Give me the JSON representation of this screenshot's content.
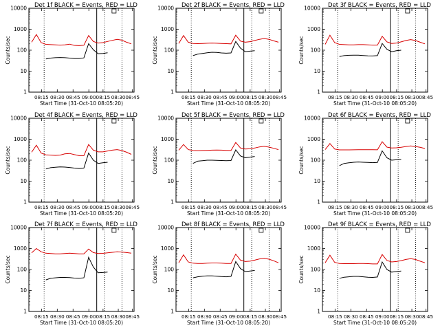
{
  "chart_data": [
    {
      "type": "line",
      "title": "Det 1f BLACK = Events, RED = LLD",
      "xlabel": "Start Time (31-Oct-10 08:05:20)",
      "ylabel": "Counts/sec",
      "x_ticks": [
        "08:15",
        "08:30",
        "08:45",
        "09:00",
        "08:15",
        "08:30",
        "08:45"
      ],
      "y_ticks": [
        "1",
        "10",
        "100",
        "1000",
        "10000"
      ],
      "yscale": "log",
      "ylim": [
        1,
        10000
      ],
      "series": [
        {
          "color": "#d80000",
          "values": [
            240,
            560,
            230,
            190,
            185,
            180,
            175,
            180,
            195,
            170,
            165,
            172,
            500,
            260,
            220,
            230,
            260,
            295,
            330,
            300,
            240,
            200
          ]
        },
        {
          "color": "#000000",
          "values": [
            null,
            null,
            null,
            38,
            42,
            44,
            45,
            44,
            42,
            40,
            40,
            43,
            205,
            105,
            68,
            70,
            75,
            null,
            null,
            null,
            null,
            null
          ]
        }
      ]
    },
    {
      "type": "line",
      "title": "Det 2f BLACK = Events, RED = LLD",
      "xlabel": "Start Time (31-Oct-10 08:05:20)",
      "ylabel": "Counts/sec",
      "x_ticks": [
        "08:15",
        "08:30",
        "08:45",
        "09:00",
        "08:15",
        "08:30",
        "08:45"
      ],
      "y_ticks": [
        "1",
        "10",
        "100",
        "1000",
        "10000"
      ],
      "yscale": "log",
      "ylim": [
        1,
        10000
      ],
      "series": [
        {
          "color": "#d80000",
          "values": [
            210,
            500,
            240,
            210,
            205,
            210,
            215,
            220,
            215,
            210,
            205,
            200,
            520,
            270,
            240,
            255,
            290,
            330,
            360,
            330,
            280,
            240
          ]
        },
        {
          "color": "#000000",
          "values": [
            null,
            null,
            null,
            55,
            65,
            70,
            75,
            80,
            78,
            74,
            72,
            74,
            260,
            125,
            85,
            90,
            95,
            null,
            null,
            null,
            null,
            null
          ]
        }
      ]
    },
    {
      "type": "line",
      "title": "Det 3f BLACK = Events, RED = LLD",
      "xlabel": "Start Time (31-Oct-10 08:05:20)",
      "ylabel": "Counts/sec",
      "x_ticks": [
        "08:15",
        "08:30",
        "08:45",
        "09:00",
        "08:15",
        "08:30",
        "08:45"
      ],
      "y_ticks": [
        "1",
        "10",
        "100",
        "1000",
        "10000"
      ],
      "yscale": "log",
      "ylim": [
        1,
        10000
      ],
      "series": [
        {
          "color": "#d80000",
          "values": [
            190,
            520,
            230,
            190,
            185,
            180,
            180,
            185,
            185,
            180,
            175,
            175,
            460,
            250,
            210,
            220,
            250,
            290,
            320,
            290,
            240,
            200
          ]
        },
        {
          "color": "#000000",
          "values": [
            null,
            null,
            null,
            50,
            55,
            57,
            58,
            58,
            56,
            54,
            53,
            55,
            210,
            110,
            85,
            95,
            100,
            null,
            null,
            null,
            null,
            null
          ]
        }
      ]
    },
    {
      "type": "line",
      "title": "Det 4f BLACK = Events, RED = LLD",
      "xlabel": "Start Time (31-Oct-10 08:05:20)",
      "ylabel": "Counts/sec",
      "x_ticks": [
        "08:15",
        "08:30",
        "08:45",
        "09:00",
        "08:15",
        "08:30",
        "08:45"
      ],
      "y_ticks": [
        "1",
        "10",
        "100",
        "1000",
        "10000"
      ],
      "yscale": "log",
      "ylim": [
        1,
        10000
      ],
      "series": [
        {
          "color": "#d80000",
          "values": [
            240,
            520,
            220,
            180,
            175,
            170,
            175,
            200,
            210,
            185,
            165,
            165,
            560,
            300,
            250,
            250,
            275,
            300,
            320,
            290,
            240,
            190
          ]
        },
        {
          "color": "#000000",
          "values": [
            null,
            null,
            null,
            38,
            44,
            46,
            48,
            47,
            45,
            42,
            40,
            42,
            220,
            100,
            70,
            75,
            80,
            null,
            null,
            null,
            null,
            null
          ]
        }
      ]
    },
    {
      "type": "line",
      "title": "Det 5f BLACK = Events, RED = LLD",
      "xlabel": "Start Time (31-Oct-10 08:05:20)",
      "ylabel": "Counts/sec",
      "x_ticks": [
        "08:15",
        "08:30",
        "08:45",
        "09:00",
        "08:15",
        "08:30",
        "08:45"
      ],
      "y_ticks": [
        "1",
        "10",
        "100",
        "1000",
        "10000"
      ],
      "yscale": "log",
      "ylim": [
        1,
        10000
      ],
      "series": [
        {
          "color": "#d80000",
          "values": [
            300,
            560,
            320,
            290,
            285,
            290,
            295,
            300,
            305,
            300,
            295,
            290,
            700,
            380,
            340,
            350,
            380,
            430,
            460,
            420,
            370,
            320
          ]
        },
        {
          "color": "#000000",
          "values": [
            null,
            null,
            null,
            70,
            90,
            95,
            100,
            100,
            98,
            96,
            94,
            96,
            310,
            160,
            130,
            140,
            150,
            null,
            null,
            null,
            null,
            null
          ]
        }
      ]
    },
    {
      "type": "line",
      "title": "Det 6f BLACK = Events, RED = LLD",
      "xlabel": "Start Time (31-Oct-10 08:05:20)",
      "ylabel": "Counts/sec",
      "x_ticks": [
        "08:15",
        "08:30",
        "08:45",
        "09:00",
        "08:15",
        "08:30",
        "08:45"
      ],
      "y_ticks": [
        "1",
        "10",
        "100",
        "1000",
        "10000"
      ],
      "yscale": "log",
      "ylim": [
        1,
        10000
      ],
      "series": [
        {
          "color": "#d80000",
          "values": [
            320,
            620,
            340,
            310,
            310,
            310,
            312,
            315,
            318,
            316,
            314,
            312,
            760,
            420,
            380,
            390,
            410,
            450,
            480,
            450,
            410,
            360
          ]
        },
        {
          "color": "#000000",
          "values": [
            null,
            null,
            null,
            55,
            70,
            75,
            80,
            82,
            80,
            78,
            76,
            78,
            280,
            130,
            100,
            105,
            110,
            null,
            null,
            null,
            null,
            null
          ]
        }
      ]
    },
    {
      "type": "line",
      "title": "Det 7f BLACK = Events, RED = LLD",
      "xlabel": "Start Time (31-Oct-10 08:05:20)",
      "ylabel": "Counts/sec",
      "x_ticks": [
        "08:15",
        "08:30",
        "08:45",
        "09:00",
        "08:15",
        "08:30",
        "08:45"
      ],
      "y_ticks": [
        "1",
        "10",
        "100",
        "1000",
        "10000"
      ],
      "yscale": "log",
      "ylim": [
        1,
        10000
      ],
      "series": [
        {
          "color": "#d80000",
          "values": [
            620,
            1000,
            700,
            600,
            580,
            560,
            560,
            580,
            600,
            580,
            560,
            560,
            940,
            640,
            580,
            590,
            620,
            660,
            700,
            680,
            640,
            600
          ]
        },
        {
          "color": "#000000",
          "values": [
            null,
            null,
            null,
            32,
            38,
            40,
            42,
            42,
            41,
            39,
            38,
            40,
            380,
            130,
            70,
            72,
            75,
            null,
            null,
            null,
            null,
            null
          ]
        }
      ]
    },
    {
      "type": "line",
      "title": "Det 8f BLACK = Events, RED = LLD",
      "xlabel": "Start Time (31-Oct-10 08:05:20)",
      "ylabel": "Counts/sec",
      "x_ticks": [
        "08:15",
        "08:30",
        "08:45",
        "09:00",
        "08:15",
        "08:30",
        "08:45"
      ],
      "y_ticks": [
        "1",
        "10",
        "100",
        "1000",
        "10000"
      ],
      "yscale": "log",
      "ylim": [
        1,
        10000
      ],
      "series": [
        {
          "color": "#d80000",
          "values": [
            210,
            500,
            230,
            200,
            195,
            195,
            200,
            205,
            205,
            200,
            195,
            195,
            540,
            280,
            240,
            250,
            280,
            320,
            340,
            310,
            260,
            210
          ]
        },
        {
          "color": "#000000",
          "values": [
            null,
            null,
            null,
            40,
            45,
            48,
            50,
            50,
            48,
            46,
            45,
            47,
            240,
            110,
            80,
            85,
            90,
            null,
            null,
            null,
            null,
            null
          ]
        }
      ]
    },
    {
      "type": "line",
      "title": "Det 9f BLACK = Events, RED = LLD",
      "xlabel": "Start Time (31-Oct-10 08:05:20)",
      "ylabel": "Counts/sec",
      "x_ticks": [
        "08:15",
        "08:30",
        "08:45",
        "09:00",
        "08:15",
        "08:30",
        "08:45"
      ],
      "y_ticks": [
        "1",
        "10",
        "100",
        "1000",
        "10000"
      ],
      "yscale": "log",
      "ylim": [
        1,
        10000
      ],
      "series": [
        {
          "color": "#d80000",
          "values": [
            210,
            480,
            220,
            195,
            190,
            190,
            190,
            195,
            195,
            190,
            185,
            185,
            520,
            270,
            230,
            240,
            265,
            300,
            330,
            300,
            250,
            210
          ]
        },
        {
          "color": "#000000",
          "values": [
            null,
            null,
            null,
            38,
            43,
            45,
            47,
            47,
            45,
            43,
            42,
            44,
            230,
            100,
            75,
            80,
            85,
            null,
            null,
            null,
            null,
            null
          ]
        }
      ]
    }
  ]
}
